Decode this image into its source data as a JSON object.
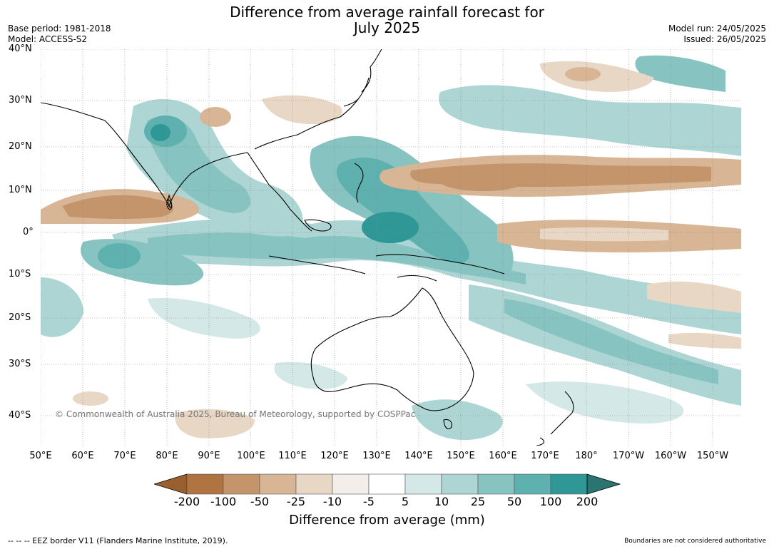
{
  "title": {
    "line1": "Difference from average rainfall forecast for",
    "line2": "July 2025"
  },
  "base_period": "Base period: 1981-2018",
  "model": "Model: ACCESS-S2",
  "model_run": "Model run: 24/05/2025",
  "issued": "Issued: 26/05/2025",
  "lat_labels": [
    "40°N",
    "30°N",
    "20°N",
    "10°N",
    "0°",
    "10°S",
    "20°S",
    "30°S",
    "40°S"
  ],
  "lon_labels": [
    "50°E",
    "60°E",
    "70°E",
    "80°E",
    "90°E",
    "100°E",
    "110°E",
    "120°E",
    "130°E",
    "140°E",
    "150°E",
    "160°E",
    "170°E",
    "180°",
    "170°W",
    "160°W",
    "150°W"
  ],
  "colorbar": {
    "ticks": [
      "-200",
      "-100",
      "-50",
      "-25",
      "-10",
      "-5",
      "5",
      "10",
      "25",
      "50",
      "100",
      "200"
    ],
    "colors": [
      "#9a5f2e",
      "#b07440",
      "#c4956a",
      "#d8b594",
      "#e9d7c6",
      "#f3eeea",
      "#ffffff",
      "#d3e8e7",
      "#acd5d4",
      "#86c3c1",
      "#5eb1af",
      "#2f9896",
      "#2a7472"
    ],
    "label": "Difference from average (mm)"
  },
  "copyright": "© Commonwealth of Australia 2025, Bureau of Meteorology, supported by COSPPac",
  "footer_left": "--  --  -- EEZ border V11 (Flanders Marine Institute, 2019).",
  "footer_right": "Boundaries are not considered authoritative"
}
